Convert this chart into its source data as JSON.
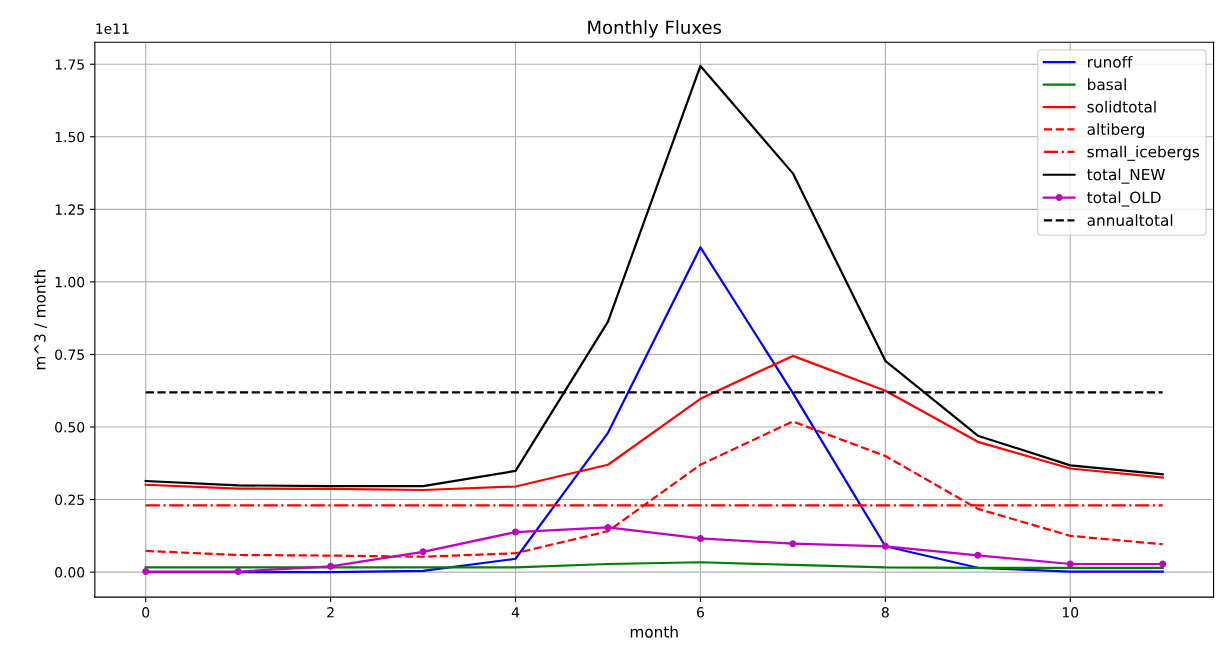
{
  "chart_data": {
    "type": "line",
    "title": "Monthly Fluxes",
    "xlabel": "month",
    "ylabel": "m^3 / month",
    "annotations": [
      "1e11"
    ],
    "x": [
      0,
      1,
      2,
      3,
      4,
      5,
      6,
      7,
      8,
      9,
      10,
      11
    ],
    "series": [
      {
        "name": "runoff",
        "color": "#0000ff",
        "line_style": "solid",
        "values": [
          0.0,
          0.0,
          0.0,
          0.004,
          0.046,
          0.48,
          1.119,
          0.617,
          0.089,
          0.015,
          0.002,
          0.002
        ]
      },
      {
        "name": "basal",
        "color": "#008000",
        "line_style": "solid",
        "values": [
          0.016,
          0.016,
          0.016,
          0.016,
          0.016,
          0.028,
          0.034,
          0.025,
          0.016,
          0.015,
          0.015,
          0.015
        ]
      },
      {
        "name": "solidtotal",
        "color": "#ff0000",
        "line_style": "solid",
        "values": [
          0.301,
          0.288,
          0.287,
          0.283,
          0.295,
          0.37,
          0.597,
          0.745,
          0.625,
          0.449,
          0.357,
          0.326
        ]
      },
      {
        "name": "altiberg",
        "color": "#ff0000",
        "line_style": "dashed",
        "values": [
          0.073,
          0.059,
          0.057,
          0.053,
          0.065,
          0.141,
          0.37,
          0.519,
          0.4,
          0.218,
          0.125,
          0.096
        ]
      },
      {
        "name": "small_icebergs",
        "color": "#ff0000",
        "line_style": "dashdot",
        "values": [
          0.23,
          0.23,
          0.23,
          0.23,
          0.23,
          0.23,
          0.23,
          0.23,
          0.23,
          0.23,
          0.23,
          0.23
        ]
      },
      {
        "name": "total_NEW",
        "color": "#000000",
        "line_style": "solid",
        "values": [
          0.314,
          0.299,
          0.296,
          0.296,
          0.349,
          0.863,
          1.744,
          1.374,
          0.728,
          0.47,
          0.368,
          0.337
        ]
      },
      {
        "name": "total_OLD",
        "color": "#bf00bf",
        "line_style": "solid",
        "marker": "circle",
        "values": [
          0.002,
          0.002,
          0.02,
          0.07,
          0.138,
          0.154,
          0.116,
          0.098,
          0.089,
          0.058,
          0.028,
          0.028
        ]
      },
      {
        "name": "annualtotal",
        "color": "#000000",
        "line_style": "dashed",
        "values": [
          0.619,
          0.619,
          0.619,
          0.619,
          0.619,
          0.619,
          0.619,
          0.619,
          0.619,
          0.619,
          0.619,
          0.619
        ]
      }
    ],
    "xlim": [
      -0.55,
      11.55
    ],
    "xticks": [
      0,
      2,
      4,
      6,
      8,
      10
    ],
    "ylim": [
      -0.086,
      1.826
    ],
    "yticks": [
      {
        "value": 0,
        "label": "0.00"
      },
      {
        "value": 0.25,
        "label": "0.25"
      },
      {
        "value": 0.5,
        "label": "0.50"
      },
      {
        "value": 0.75,
        "label": "0.75"
      },
      {
        "value": 1.0,
        "label": "1.00"
      },
      {
        "value": 1.25,
        "label": "1.25"
      },
      {
        "value": 1.5,
        "label": "1.50"
      },
      {
        "value": 1.75,
        "label": "1.75"
      }
    ],
    "grid": true,
    "legend": "top right"
  }
}
